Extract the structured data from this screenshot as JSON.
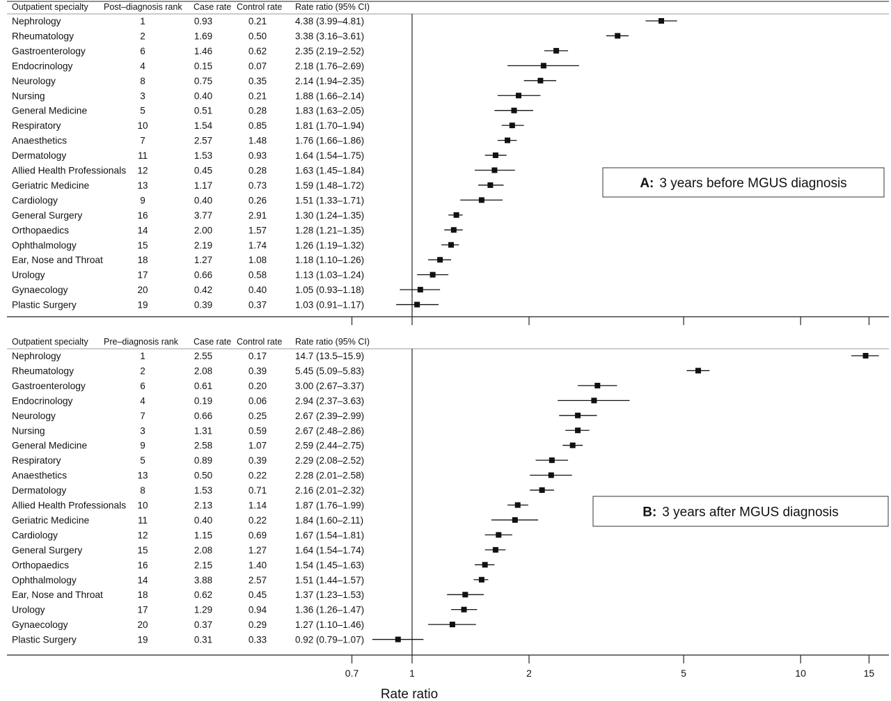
{
  "chart_data": {
    "type": "forest",
    "xlabel": "Rate ratio",
    "x_scale": "log",
    "x_ticks": [
      "0.7",
      "1",
      "2",
      "5",
      "10",
      "15"
    ],
    "reference_line": 1,
    "panels": [
      {
        "title_bold": "A:",
        "title_rest": "3 years before MGUS diagnosis",
        "headers": {
          "specialty": "Outpatient specialty",
          "rank": "Post–diagnosis rank",
          "case": "Case rate",
          "control": "Control rate",
          "ratio": "Rate ratio (95% CI)"
        },
        "rows": [
          {
            "specialty": "Nephrology",
            "rank": "1",
            "case": "0.93",
            "control": "0.21",
            "ratio_text": "4.38 (3.99–4.81)",
            "rr": 4.38,
            "lo": 3.99,
            "hi": 4.81
          },
          {
            "specialty": "Rheumatology",
            "rank": "2",
            "case": "1.69",
            "control": "0.50",
            "ratio_text": "3.38 (3.16–3.61)",
            "rr": 3.38,
            "lo": 3.16,
            "hi": 3.61
          },
          {
            "specialty": "Gastroenterology",
            "rank": "6",
            "case": "1.46",
            "control": "0.62",
            "ratio_text": "2.35 (2.19–2.52)",
            "rr": 2.35,
            "lo": 2.19,
            "hi": 2.52
          },
          {
            "specialty": "Endocrinology",
            "rank": "4",
            "case": "0.15",
            "control": "0.07",
            "ratio_text": "2.18 (1.76–2.69)",
            "rr": 2.18,
            "lo": 1.76,
            "hi": 2.69
          },
          {
            "specialty": "Neurology",
            "rank": "8",
            "case": "0.75",
            "control": "0.35",
            "ratio_text": "2.14 (1.94–2.35)",
            "rr": 2.14,
            "lo": 1.94,
            "hi": 2.35
          },
          {
            "specialty": "Nursing",
            "rank": "3",
            "case": "0.40",
            "control": "0.21",
            "ratio_text": "1.88 (1.66–2.14)",
            "rr": 1.88,
            "lo": 1.66,
            "hi": 2.14
          },
          {
            "specialty": "General Medicine",
            "rank": "5",
            "case": "0.51",
            "control": "0.28",
            "ratio_text": "1.83 (1.63–2.05)",
            "rr": 1.83,
            "lo": 1.63,
            "hi": 2.05
          },
          {
            "specialty": "Respiratory",
            "rank": "10",
            "case": "1.54",
            "control": "0.85",
            "ratio_text": "1.81 (1.70–1.94)",
            "rr": 1.81,
            "lo": 1.7,
            "hi": 1.94
          },
          {
            "specialty": "Anaesthetics",
            "rank": "7",
            "case": "2.57",
            "control": "1.48",
            "ratio_text": "1.76 (1.66–1.86)",
            "rr": 1.76,
            "lo": 1.66,
            "hi": 1.86
          },
          {
            "specialty": "Dermatology",
            "rank": "11",
            "case": "1.53",
            "control": "0.93",
            "ratio_text": "1.64 (1.54–1.75)",
            "rr": 1.64,
            "lo": 1.54,
            "hi": 1.75
          },
          {
            "specialty": "Allied Health Professionals",
            "rank": "12",
            "case": "0.45",
            "control": "0.28",
            "ratio_text": "1.63 (1.45–1.84)",
            "rr": 1.63,
            "lo": 1.45,
            "hi": 1.84
          },
          {
            "specialty": "Geriatric Medicine",
            "rank": "13",
            "case": "1.17",
            "control": "0.73",
            "ratio_text": "1.59 (1.48–1.72)",
            "rr": 1.59,
            "lo": 1.48,
            "hi": 1.72
          },
          {
            "specialty": "Cardiology",
            "rank": "9",
            "case": "0.40",
            "control": "0.26",
            "ratio_text": "1.51 (1.33–1.71)",
            "rr": 1.51,
            "lo": 1.33,
            "hi": 1.71
          },
          {
            "specialty": "General Surgery",
            "rank": "16",
            "case": "3.77",
            "control": "2.91",
            "ratio_text": "1.30 (1.24–1.35)",
            "rr": 1.3,
            "lo": 1.24,
            "hi": 1.35
          },
          {
            "specialty": "Orthopaedics",
            "rank": "14",
            "case": "2.00",
            "control": "1.57",
            "ratio_text": "1.28 (1.21–1.35)",
            "rr": 1.28,
            "lo": 1.21,
            "hi": 1.35
          },
          {
            "specialty": "Ophthalmology",
            "rank": "15",
            "case": "2.19",
            "control": "1.74",
            "ratio_text": "1.26 (1.19–1.32)",
            "rr": 1.26,
            "lo": 1.19,
            "hi": 1.32
          },
          {
            "specialty": "Ear, Nose and Throat",
            "rank": "18",
            "case": "1.27",
            "control": "1.08",
            "ratio_text": "1.18 (1.10–1.26)",
            "rr": 1.18,
            "lo": 1.1,
            "hi": 1.26
          },
          {
            "specialty": "Urology",
            "rank": "17",
            "case": "0.66",
            "control": "0.58",
            "ratio_text": "1.13 (1.03–1.24)",
            "rr": 1.13,
            "lo": 1.03,
            "hi": 1.24
          },
          {
            "specialty": "Gynaecology",
            "rank": "20",
            "case": "0.42",
            "control": "0.40",
            "ratio_text": "1.05 (0.93–1.18)",
            "rr": 1.05,
            "lo": 0.93,
            "hi": 1.18
          },
          {
            "specialty": "Plastic Surgery",
            "rank": "19",
            "case": "0.39",
            "control": "0.37",
            "ratio_text": "1.03 (0.91–1.17)",
            "rr": 1.03,
            "lo": 0.91,
            "hi": 1.17
          }
        ]
      },
      {
        "title_bold": "B:",
        "title_rest": "3 years after MGUS diagnosis",
        "headers": {
          "specialty": "Outpatient specialty",
          "rank": "Pre–diagnosis rank",
          "case": "Case rate",
          "control": "Control rate",
          "ratio": "Rate ratio (95% CI)"
        },
        "rows": [
          {
            "specialty": "Nephrology",
            "rank": "1",
            "case": "2.55",
            "control": "0.17",
            "ratio_text": "14.7 (13.5–15.9)",
            "rr": 14.7,
            "lo": 13.5,
            "hi": 15.9
          },
          {
            "specialty": "Rheumatology",
            "rank": "2",
            "case": "2.08",
            "control": "0.39",
            "ratio_text": "5.45 (5.09–5.83)",
            "rr": 5.45,
            "lo": 5.09,
            "hi": 5.83
          },
          {
            "specialty": "Gastroenterology",
            "rank": "6",
            "case": "0.61",
            "control": "0.20",
            "ratio_text": "3.00 (2.67–3.37)",
            "rr": 3.0,
            "lo": 2.67,
            "hi": 3.37
          },
          {
            "specialty": "Endocrinology",
            "rank": "4",
            "case": "0.19",
            "control": "0.06",
            "ratio_text": "2.94 (2.37–3.63)",
            "rr": 2.94,
            "lo": 2.37,
            "hi": 3.63
          },
          {
            "specialty": "Neurology",
            "rank": "7",
            "case": "0.66",
            "control": "0.25",
            "ratio_text": "2.67 (2.39–2.99)",
            "rr": 2.67,
            "lo": 2.39,
            "hi": 2.99
          },
          {
            "specialty": "Nursing",
            "rank": "3",
            "case": "1.31",
            "control": "0.59",
            "ratio_text": "2.67 (2.48–2.86)",
            "rr": 2.67,
            "lo": 2.48,
            "hi": 2.86
          },
          {
            "specialty": "General Medicine",
            "rank": "9",
            "case": "2.58",
            "control": "1.07",
            "ratio_text": "2.59 (2.44–2.75)",
            "rr": 2.59,
            "lo": 2.44,
            "hi": 2.75
          },
          {
            "specialty": "Respiratory",
            "rank": "5",
            "case": "0.89",
            "control": "0.39",
            "ratio_text": "2.29 (2.08–2.52)",
            "rr": 2.29,
            "lo": 2.08,
            "hi": 2.52
          },
          {
            "specialty": "Anaesthetics",
            "rank": "13",
            "case": "0.50",
            "control": "0.22",
            "ratio_text": "2.28 (2.01–2.58)",
            "rr": 2.28,
            "lo": 2.01,
            "hi": 2.58
          },
          {
            "specialty": "Dermatology",
            "rank": "8",
            "case": "1.53",
            "control": "0.71",
            "ratio_text": "2.16 (2.01–2.32)",
            "rr": 2.16,
            "lo": 2.01,
            "hi": 2.32
          },
          {
            "specialty": "Allied Health Professionals",
            "rank": "10",
            "case": "2.13",
            "control": "1.14",
            "ratio_text": "1.87 (1.76–1.99)",
            "rr": 1.87,
            "lo": 1.76,
            "hi": 1.99
          },
          {
            "specialty": "Geriatric Medicine",
            "rank": "11",
            "case": "0.40",
            "control": "0.22",
            "ratio_text": "1.84 (1.60–2.11)",
            "rr": 1.84,
            "lo": 1.6,
            "hi": 2.11
          },
          {
            "specialty": "Cardiology",
            "rank": "12",
            "case": "1.15",
            "control": "0.69",
            "ratio_text": "1.67 (1.54–1.81)",
            "rr": 1.67,
            "lo": 1.54,
            "hi": 1.81
          },
          {
            "specialty": "General Surgery",
            "rank": "15",
            "case": "2.08",
            "control": "1.27",
            "ratio_text": "1.64 (1.54–1.74)",
            "rr": 1.64,
            "lo": 1.54,
            "hi": 1.74
          },
          {
            "specialty": "Orthopaedics",
            "rank": "16",
            "case": "2.15",
            "control": "1.40",
            "ratio_text": "1.54 (1.45–1.63)",
            "rr": 1.54,
            "lo": 1.45,
            "hi": 1.63
          },
          {
            "specialty": "Ophthalmology",
            "rank": "14",
            "case": "3.88",
            "control": "2.57",
            "ratio_text": "1.51 (1.44–1.57)",
            "rr": 1.51,
            "lo": 1.44,
            "hi": 1.57
          },
          {
            "specialty": "Ear, Nose and Throat",
            "rank": "18",
            "case": "0.62",
            "control": "0.45",
            "ratio_text": "1.37 (1.23–1.53)",
            "rr": 1.37,
            "lo": 1.23,
            "hi": 1.53
          },
          {
            "specialty": "Urology",
            "rank": "17",
            "case": "1.29",
            "control": "0.94",
            "ratio_text": "1.36 (1.26–1.47)",
            "rr": 1.36,
            "lo": 1.26,
            "hi": 1.47
          },
          {
            "specialty": "Gynaecology",
            "rank": "20",
            "case": "0.37",
            "control": "0.29",
            "ratio_text": "1.27 (1.10–1.46)",
            "rr": 1.27,
            "lo": 1.1,
            "hi": 1.46
          },
          {
            "specialty": "Plastic Surgery",
            "rank": "19",
            "case": "0.31",
            "control": "0.33",
            "ratio_text": "0.92 (0.79–1.07)",
            "rr": 0.92,
            "lo": 0.79,
            "hi": 1.07
          }
        ]
      }
    ]
  }
}
